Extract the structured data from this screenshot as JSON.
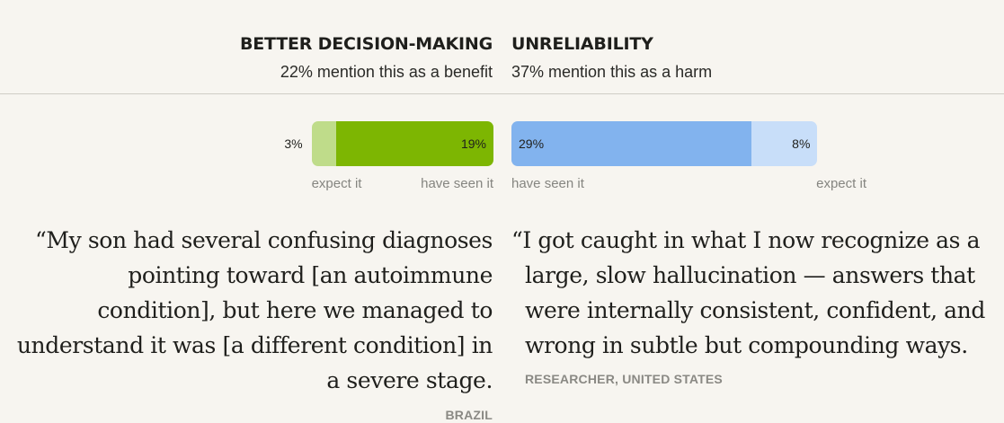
{
  "left": {
    "heading": "BETTER DECISION-MAKING",
    "subtext": "22% mention this as a benefit",
    "quote_lines": [
      "“My son had several confusing diagnoses",
      "pointing toward [an autoimmune",
      "condition], but here we managed to",
      "understand it was [a different condition] in",
      "a severe stage."
    ],
    "attribution": "BRAZIL"
  },
  "right": {
    "heading": "UNRELIABILITY",
    "subtext": "37% mention this as a harm",
    "quote_lines": [
      "“I got caught in what I now recognize as a",
      "large, slow hallucination — answers that",
      "were internally consistent, confident, and",
      "wrong in subtle but compounding ways."
    ],
    "attribution": "RESEARCHER, UNITED STATES"
  },
  "chart_data": [
    {
      "type": "bar",
      "orientation": "horizontal-stacked",
      "direction": "right-to-left",
      "categories": [
        "expect it",
        "have seen it"
      ],
      "values": [
        3,
        19
      ],
      "value_labels": [
        "3%",
        "19%"
      ],
      "colors": [
        "#bfdc8a",
        "#7db602"
      ]
    },
    {
      "type": "bar",
      "orientation": "horizontal-stacked",
      "direction": "left-to-right",
      "categories": [
        "have seen it",
        "expect it"
      ],
      "values": [
        29,
        8
      ],
      "value_labels": [
        "29%",
        "8%"
      ],
      "colors": [
        "#82b3ee",
        "#c8def9"
      ]
    }
  ]
}
